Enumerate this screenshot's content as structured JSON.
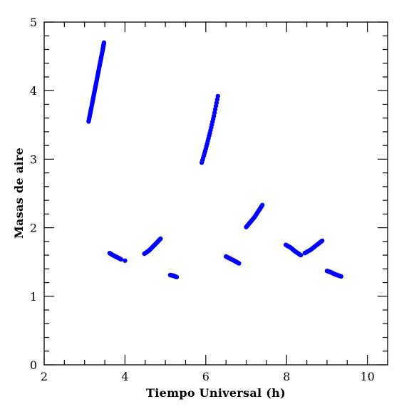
{
  "chart_data": {
    "type": "scatter",
    "xlabel": "Tiempo Universal (h)",
    "ylabel": "Masas de aire",
    "xlim": [
      2,
      10.5
    ],
    "ylim": [
      0,
      5
    ],
    "xticks_major": [
      2,
      4,
      6,
      8,
      10
    ],
    "yticks_major": [
      0,
      1,
      2,
      3,
      4,
      5
    ],
    "grid": false,
    "color": "#0000ff",
    "segments": [
      {
        "x": [
          3.1,
          3.15,
          3.2,
          3.25,
          3.3,
          3.35,
          3.4,
          3.45,
          3.48
        ],
        "y": [
          3.55,
          3.7,
          3.85,
          4.0,
          4.15,
          4.3,
          4.45,
          4.6,
          4.7
        ]
      },
      {
        "x": [
          3.62,
          3.7,
          3.8,
          3.9
        ],
        "y": [
          1.63,
          1.6,
          1.57,
          1.54
        ]
      },
      {
        "x": [
          4.0
        ],
        "y": [
          1.52
        ]
      },
      {
        "x": [
          4.48,
          4.6,
          4.7,
          4.8,
          4.88
        ],
        "y": [
          1.62,
          1.67,
          1.73,
          1.79,
          1.84
        ]
      },
      {
        "x": [
          5.12,
          5.2,
          5.28
        ],
        "y": [
          1.31,
          1.3,
          1.28
        ]
      },
      {
        "x": [
          5.9,
          6.0,
          6.1,
          6.2,
          6.3
        ],
        "y": [
          2.95,
          3.15,
          3.38,
          3.63,
          3.92
        ]
      },
      {
        "x": [
          6.5,
          6.6,
          6.7,
          6.82
        ],
        "y": [
          1.58,
          1.55,
          1.52,
          1.48
        ]
      },
      {
        "x": [
          7.0,
          7.1,
          7.2,
          7.3,
          7.4
        ],
        "y": [
          2.01,
          2.08,
          2.15,
          2.24,
          2.33
        ]
      },
      {
        "x": [
          7.98,
          8.1,
          8.2,
          8.35
        ],
        "y": [
          1.75,
          1.71,
          1.66,
          1.6
        ]
      },
      {
        "x": [
          8.45,
          8.6,
          8.75,
          8.88
        ],
        "y": [
          1.63,
          1.68,
          1.75,
          1.81
        ]
      },
      {
        "x": [
          9.0,
          9.1,
          9.2,
          9.35
        ],
        "y": [
          1.37,
          1.35,
          1.32,
          1.29
        ]
      }
    ]
  }
}
